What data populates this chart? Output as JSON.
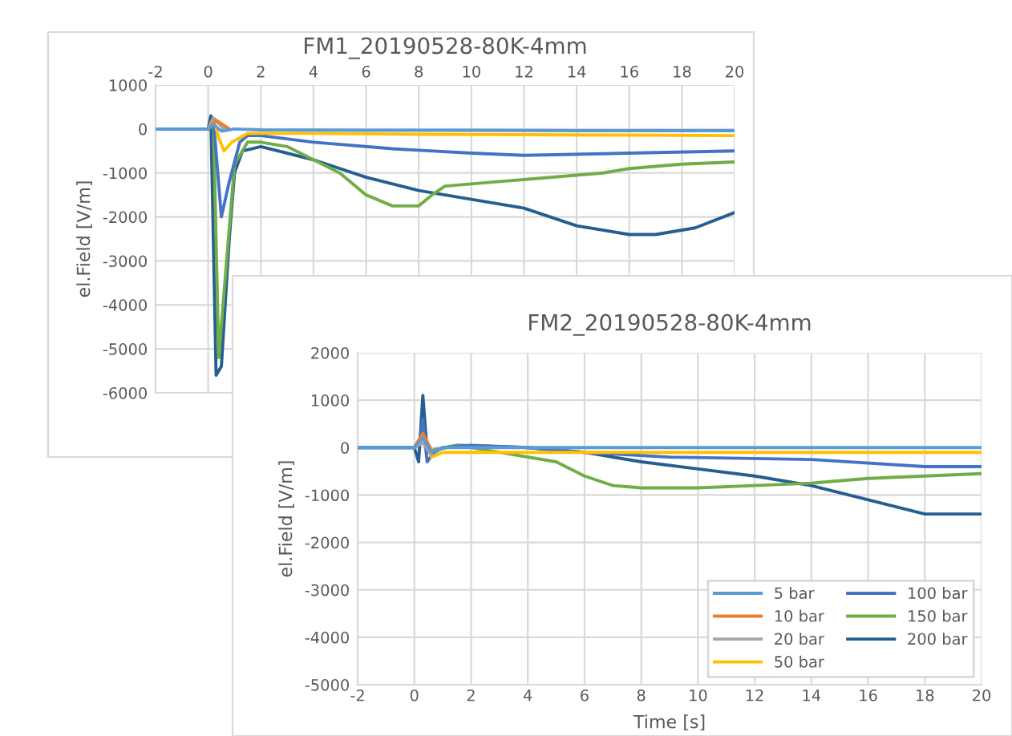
{
  "chart_data": [
    {
      "type": "line",
      "title": "FM1_20190528-80K-4mm",
      "ylabel": "el.Field [V/m]",
      "xlim": [
        -2,
        20
      ],
      "ylim": [
        -6000,
        1000
      ],
      "xticks": [
        -2,
        0,
        2,
        4,
        6,
        8,
        10,
        12,
        14,
        16,
        18,
        20
      ],
      "yticks": [
        -6000,
        -5000,
        -4000,
        -3000,
        -2000,
        -1000,
        0,
        1000
      ],
      "grid": true,
      "legend": false,
      "series": [
        {
          "color": "#5b9bd5",
          "x": [
            -2,
            0,
            0.2,
            0.5,
            1,
            2,
            6,
            10,
            14,
            20
          ],
          "values": [
            0,
            0,
            100,
            -50,
            0,
            -20,
            -30,
            -30,
            -40,
            -40
          ]
        },
        {
          "color": "#ed7d31",
          "x": [
            0,
            0.3,
            0.8
          ],
          "values": [
            0,
            200,
            0
          ]
        },
        {
          "color": "#a5a5a5",
          "x": [
            0,
            0.2,
            0.6
          ],
          "values": [
            0,
            250,
            0
          ]
        },
        {
          "color": "#ffc000",
          "x": [
            0,
            0.2,
            0.4,
            0.6,
            0.9,
            1.5,
            4,
            8,
            12,
            16,
            20
          ],
          "values": [
            0,
            250,
            -200,
            -500,
            -300,
            -100,
            -100,
            -120,
            -130,
            -140,
            -150
          ]
        },
        {
          "color": "#4472c4",
          "x": [
            -2,
            0,
            0.2,
            0.5,
            0.8,
            1.2,
            1.5,
            2,
            4,
            7,
            10,
            12,
            16,
            20
          ],
          "values": [
            0,
            0,
            200,
            -2000,
            -1200,
            -300,
            -150,
            -150,
            -300,
            -450,
            -550,
            -600,
            -550,
            -500
          ]
        },
        {
          "color": "#70ad47",
          "x": [
            -2,
            0,
            0.2,
            0.4,
            0.7,
            1,
            1.5,
            2,
            3,
            4,
            5,
            6,
            7,
            8,
            8.5,
            9,
            11,
            13,
            15,
            16,
            18,
            20
          ],
          "values": [
            0,
            0,
            100,
            -5200,
            -3000,
            -800,
            -300,
            -300,
            -400,
            -700,
            -1000,
            -1500,
            -1750,
            -1750,
            -1500,
            -1300,
            -1200,
            -1100,
            -1000,
            -900,
            -800,
            -750
          ]
        },
        {
          "color": "#255e91",
          "x": [
            -2,
            0,
            0.1,
            0.3,
            0.5,
            0.8,
            1,
            1.3,
            2,
            4,
            6,
            8,
            10,
            12,
            14,
            16,
            17,
            18.5,
            20
          ],
          "values": [
            0,
            0,
            300,
            -5600,
            -5400,
            -2500,
            -1000,
            -500,
            -400,
            -700,
            -1100,
            -1400,
            -1600,
            -1800,
            -2200,
            -2400,
            -2400,
            -2250,
            -1900
          ]
        }
      ]
    },
    {
      "type": "line",
      "title": "FM2_20190528-80K-4mm",
      "xlabel": "Time [s]",
      "ylabel": "el.Field [V/m]",
      "xlim": [
        -2,
        20
      ],
      "ylim": [
        -5000,
        2000
      ],
      "xticks": [
        -2,
        0,
        2,
        4,
        6,
        8,
        10,
        12,
        14,
        16,
        18,
        20
      ],
      "yticks": [
        -5000,
        -4000,
        -3000,
        -2000,
        -1000,
        0,
        1000,
        2000
      ],
      "grid": true,
      "legend": "bottom right",
      "series": [
        {
          "name": "5 bar",
          "color": "#5b9bd5",
          "x": [
            -2,
            0,
            0.3,
            0.6,
            1,
            4,
            10,
            14,
            20
          ],
          "values": [
            0,
            0,
            200,
            -100,
            0,
            0,
            0,
            0,
            0
          ]
        },
        {
          "name": "10 bar",
          "color": "#ed7d31",
          "x": [
            0,
            0.3,
            0.6
          ],
          "values": [
            0,
            300,
            -50
          ]
        },
        {
          "name": "20 bar",
          "color": "#a5a5a5",
          "x": [
            0,
            0.3,
            0.6
          ],
          "values": [
            0,
            100,
            -150
          ]
        },
        {
          "name": "50 bar",
          "color": "#ffc000",
          "x": [
            0,
            0.3,
            0.6,
            1,
            4,
            10,
            14,
            20
          ],
          "values": [
            0,
            250,
            -200,
            -100,
            -100,
            -100,
            -100,
            -100
          ]
        },
        {
          "name": "100 bar",
          "color": "#4472c4",
          "x": [
            -2,
            0,
            0.2,
            0.3,
            0.45,
            0.7,
            1,
            2,
            4,
            6,
            9,
            14,
            18,
            20
          ],
          "values": [
            0,
            0,
            200,
            600,
            -300,
            -100,
            0,
            50,
            0,
            -100,
            -200,
            -250,
            -400,
            -400
          ]
        },
        {
          "name": "150 bar",
          "color": "#70ad47",
          "x": [
            0.3,
            0.45,
            0.7,
            1.5,
            3,
            5,
            6,
            7,
            8,
            10,
            12,
            14,
            16,
            18,
            20
          ],
          "values": [
            400,
            -100,
            -50,
            50,
            -100,
            -300,
            -600,
            -800,
            -850,
            -850,
            -800,
            -750,
            -650,
            -600,
            -550
          ]
        },
        {
          "name": "200 bar",
          "color": "#255e91",
          "x": [
            -2,
            0,
            0.15,
            0.3,
            0.45,
            0.7,
            1.5,
            4,
            6,
            8,
            10,
            12,
            14,
            16,
            18,
            20
          ],
          "values": [
            0,
            0,
            -300,
            1100,
            -100,
            -50,
            50,
            0,
            -100,
            -300,
            -450,
            -600,
            -800,
            -1100,
            -1400,
            -1400
          ]
        }
      ]
    }
  ]
}
